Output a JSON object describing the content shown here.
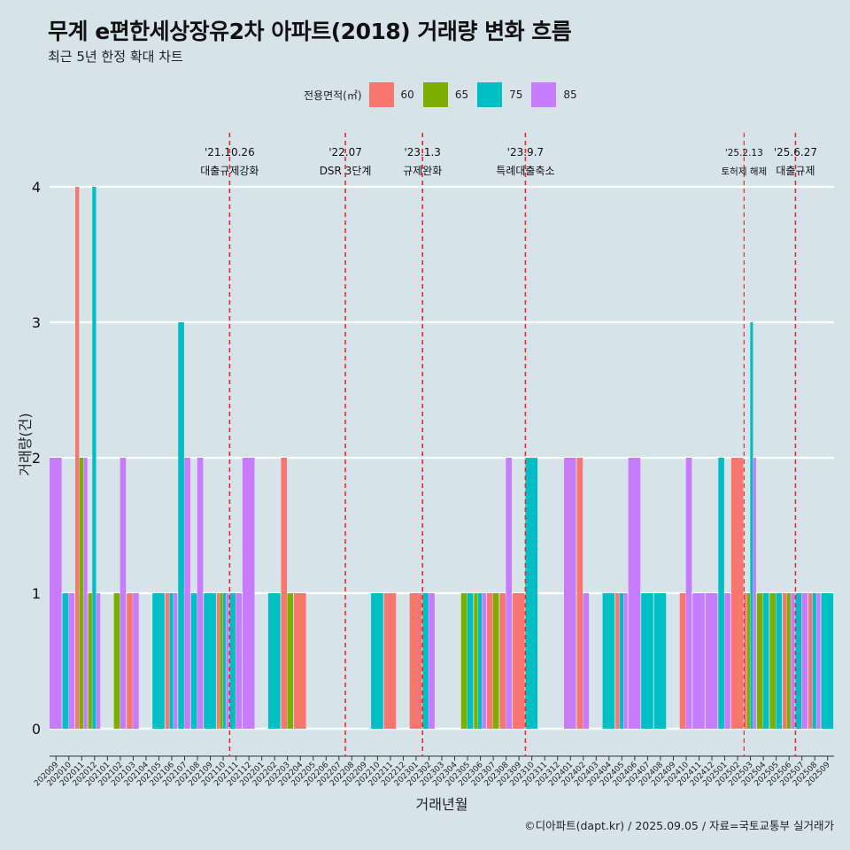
{
  "chart_data": {
    "type": "bar",
    "title": "무계 e편한세상장유2차 아파트(2018) 거래량 변화 흐름",
    "subtitle": "최근 5년 한정 확대 차트",
    "xlabel": "거래년월",
    "ylabel": "거래량(건)",
    "ylim": [
      0,
      4
    ],
    "yticks": [
      0,
      1,
      2,
      3,
      4
    ],
    "legend": {
      "title": "전용면적(㎡)",
      "position": "top",
      "items": [
        {
          "name": "60",
          "color": "#f8766d"
        },
        {
          "name": "65",
          "color": "#7cae00"
        },
        {
          "name": "75",
          "color": "#00bfc4"
        },
        {
          "name": "85",
          "color": "#c77cff"
        }
      ]
    },
    "categories": [
      "202009",
      "202010",
      "202011",
      "202012",
      "202101",
      "202102",
      "202103",
      "202104",
      "202105",
      "202106",
      "202107",
      "202108",
      "202109",
      "202110",
      "202111",
      "202112",
      "202201",
      "202202",
      "202203",
      "202204",
      "202205",
      "202206",
      "202207",
      "202208",
      "202209",
      "202210",
      "202211",
      "202212",
      "202301",
      "202302",
      "202303",
      "202304",
      "202305",
      "202306",
      "202307",
      "202308",
      "202309",
      "202310",
      "202311",
      "202312",
      "202401",
      "202402",
      "202403",
      "202404",
      "202405",
      "202406",
      "202407",
      "202408",
      "202409",
      "202410",
      "202411",
      "202412",
      "202501",
      "202502",
      "202503",
      "202504",
      "202505",
      "202506",
      "202507",
      "202508",
      "202509"
    ],
    "series": [
      {
        "name": "60",
        "values": [
          0,
          0,
          4,
          0,
          0,
          0,
          1,
          0,
          0,
          1,
          0,
          0,
          0,
          1,
          0,
          0,
          0,
          0,
          2,
          1,
          0,
          0,
          0,
          0,
          0,
          0,
          1,
          0,
          1,
          0,
          0,
          0,
          0,
          0,
          1,
          1,
          1,
          0,
          0,
          0,
          0,
          2,
          0,
          0,
          1,
          0,
          0,
          0,
          0,
          1,
          0,
          0,
          0,
          2,
          1,
          0,
          0,
          1,
          0,
          1,
          0
        ]
      },
      {
        "name": "65",
        "values": [
          0,
          0,
          2,
          1,
          0,
          1,
          0,
          0,
          0,
          0,
          0,
          0,
          0,
          1,
          0,
          0,
          0,
          0,
          1,
          0,
          0,
          0,
          0,
          0,
          0,
          0,
          0,
          0,
          0,
          0,
          0,
          0,
          1,
          1,
          1,
          0,
          0,
          0,
          0,
          0,
          0,
          0,
          0,
          0,
          0,
          0,
          0,
          0,
          0,
          0,
          0,
          0,
          0,
          0,
          1,
          1,
          1,
          1,
          0,
          0,
          0
        ]
      },
      {
        "name": "75",
        "values": [
          0,
          1,
          0,
          4,
          0,
          0,
          0,
          0,
          1,
          1,
          3,
          1,
          1,
          1,
          1,
          0,
          0,
          1,
          0,
          0,
          0,
          0,
          0,
          0,
          0,
          1,
          0,
          0,
          0,
          1,
          0,
          0,
          1,
          1,
          0,
          0,
          0,
          2,
          0,
          0,
          0,
          0,
          0,
          1,
          1,
          0,
          1,
          1,
          0,
          0,
          0,
          0,
          2,
          0,
          3,
          1,
          1,
          0,
          1,
          1,
          1
        ]
      },
      {
        "name": "85",
        "values": [
          2,
          1,
          2,
          1,
          0,
          2,
          1,
          0,
          0,
          1,
          2,
          2,
          0,
          1,
          1,
          2,
          0,
          0,
          0,
          0,
          0,
          0,
          0,
          0,
          0,
          0,
          0,
          0,
          0,
          1,
          0,
          0,
          0,
          1,
          0,
          2,
          0,
          0,
          0,
          0,
          2,
          1,
          0,
          0,
          1,
          2,
          0,
          0,
          0,
          2,
          1,
          1,
          1,
          0,
          2,
          0,
          0,
          1,
          1,
          1,
          0
        ]
      }
    ],
    "annotations": [
      {
        "after_category": "202110",
        "date": "'21.10.26",
        "label": "대출규제강화",
        "small": false
      },
      {
        "after_category": "202207",
        "date": "'22.07",
        "label": "DSR 3단계",
        "small": false
      },
      {
        "after_category": "202301",
        "date": "'23.1.3",
        "label": "규제완화",
        "small": false
      },
      {
        "after_category": "202309",
        "date": "'23.9.7",
        "label": "특례대출축소",
        "small": false
      },
      {
        "after_category": "202502",
        "date": "'25.2.13",
        "label": "토허제 해제",
        "small": true
      },
      {
        "after_category": "202506",
        "date": "'25.6.27",
        "label": "대출규제",
        "small": false
      }
    ]
  },
  "caption": "©디아파트(dapt.kr) / 2025.09.05 / 자료=국토교통부 실거래가"
}
